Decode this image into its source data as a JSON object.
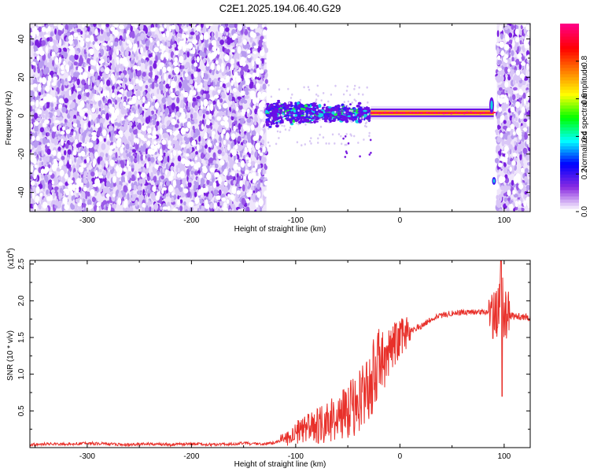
{
  "figure_title": "C2E1.2025.194.06.40.G29",
  "chart_data": [
    {
      "type": "heatmap",
      "xlabel": "Height of straight line (km)",
      "ylabel": "Frequency (Hz)",
      "xlim": [
        -355,
        125
      ],
      "ylim": [
        -50,
        48
      ],
      "x_ticks": [
        -300,
        -200,
        -100,
        0,
        100
      ],
      "x_tick_labels": [
        "-300",
        "-200",
        "-100",
        "0",
        "100"
      ],
      "y_ticks": [
        -40,
        -20,
        0,
        20,
        40
      ],
      "y_tick_labels": [
        "-40",
        "-20",
        "0",
        "20",
        "40"
      ],
      "colorbar": {
        "label": "Normalized spectral amplitude",
        "range": [
          0,
          1
        ],
        "ticks": [
          0.0,
          0.2,
          0.4,
          0.6,
          0.8
        ],
        "tick_labels": [
          "0.0",
          "0.2",
          "0.4",
          "0.6",
          "0.8"
        ],
        "colormap": [
          "#ffffff",
          "#8a2be2",
          "#0000ff",
          "#00ffff",
          "#00ff00",
          "#ffff00",
          "#ff8000",
          "#ff0000",
          "#ff0080"
        ]
      },
      "regions": [
        {
          "x_range": [
            -355,
            -128
          ],
          "y_range": [
            -50,
            48
          ],
          "amplitude": 0.12,
          "pattern": "noise"
        },
        {
          "x_range": [
            -128,
            -28
          ],
          "y_range": [
            -8,
            8
          ],
          "amplitude": 0.35,
          "pattern": "signal"
        },
        {
          "x_range": [
            -28,
            90
          ],
          "y_range": [
            0,
            3
          ],
          "amplitude": 0.95,
          "pattern": "tone"
        },
        {
          "x_range": [
            93,
            125
          ],
          "y_range": [
            -50,
            48
          ],
          "amplitude": 0.12,
          "pattern": "noise"
        }
      ]
    },
    {
      "type": "line",
      "xlabel": "Height of straight line (km)",
      "ylabel": "SNR (10 * v/v)",
      "y_scale_label": "(x10",
      "y_scale_exp": "4",
      "y_scale_close": ")",
      "xlim": [
        -355,
        125
      ],
      "ylim": [
        0,
        2.55
      ],
      "x_ticks": [
        -300,
        -200,
        -100,
        0,
        100
      ],
      "x_tick_labels": [
        "-300",
        "-200",
        "-100",
        "0",
        "100"
      ],
      "y_ticks": [
        0.5,
        1.0,
        1.5,
        2.0,
        2.5
      ],
      "y_tick_labels": [
        "0.5",
        "1.0",
        "1.5",
        "2.0",
        "2.5"
      ],
      "line_color": "#e8302a",
      "series": [
        {
          "x": [
            -355,
            -340,
            -320,
            -300,
            -280,
            -260,
            -240,
            -220,
            -200,
            -180,
            -160,
            -150,
            -140,
            -130,
            -120,
            -110,
            -100,
            -90,
            -80,
            -70,
            -60,
            -50,
            -40,
            -30,
            -25,
            -20,
            -15,
            -10,
            -5,
            0,
            10,
            20,
            30,
            40,
            50,
            60,
            70,
            80,
            90,
            95,
            98,
            100,
            110,
            125
          ],
          "y": [
            0.04,
            0.05,
            0.05,
            0.06,
            0.05,
            0.04,
            0.05,
            0.04,
            0.05,
            0.04,
            0.05,
            0.06,
            0.05,
            0.05,
            0.07,
            0.1,
            0.2,
            0.25,
            0.3,
            0.35,
            0.4,
            0.5,
            0.6,
            0.8,
            1.0,
            1.2,
            1.2,
            1.3,
            1.4,
            1.5,
            1.6,
            1.65,
            1.75,
            1.8,
            1.83,
            1.84,
            1.84,
            1.85,
            1.8,
            1.85,
            2.3,
            1.8,
            1.79,
            1.77
          ]
        }
      ]
    }
  ]
}
